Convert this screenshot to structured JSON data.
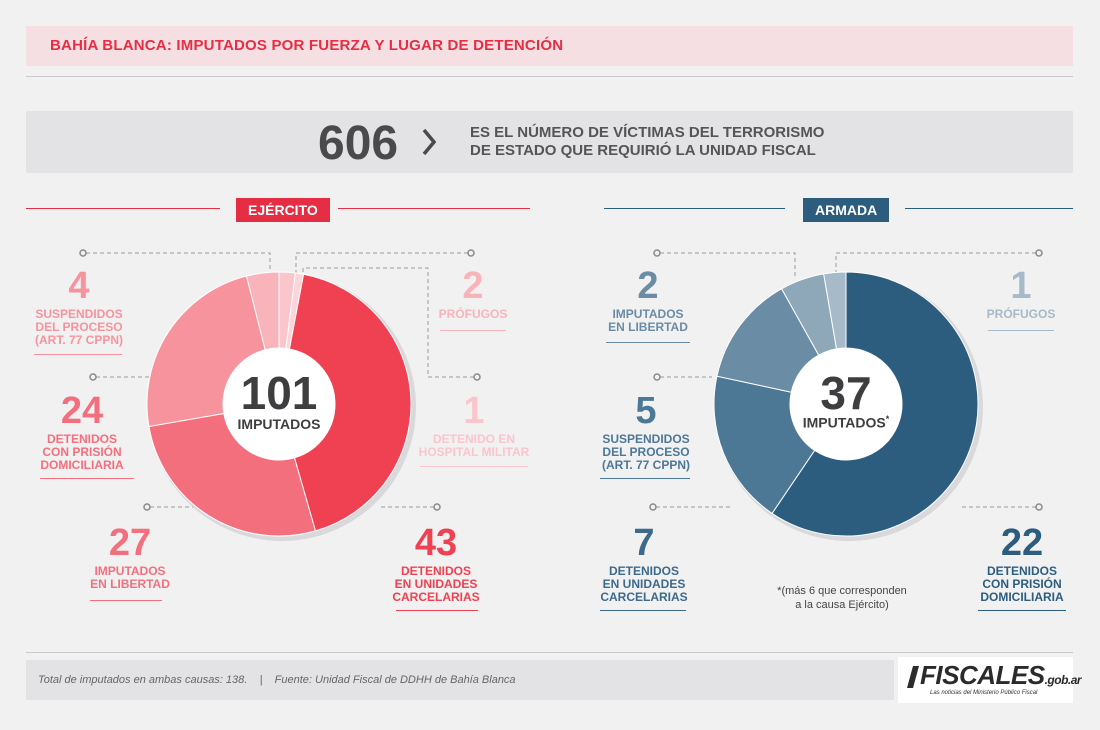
{
  "header": {
    "title": "BAHÍA BLANCA: IMPUTADOS POR FUERZA Y LUGAR DE DETENCIÓN"
  },
  "stat": {
    "number": "606",
    "text_line1": "ES EL NÚMERO DE VÍCTIMAS DEL TERRORISMO",
    "text_line2": "DE ESTADO QUE REQUIRIÓ LA UNIDAD FISCAL"
  },
  "ejercito": {
    "label": "EJÉRCITO",
    "total": "101",
    "total_label": "IMPUTADOS",
    "items": [
      {
        "num": "4",
        "l1": "SUSPENDIDOS",
        "l2": "DEL PROCESO",
        "l3": "(ART. 77 CPPN)"
      },
      {
        "num": "24",
        "l1": "DETENIDOS",
        "l2": "CON PRISIÓN",
        "l3": "DOMICILIARIA"
      },
      {
        "num": "27",
        "l1": "IMPUTADOS",
        "l2": "EN LIBERTAD"
      },
      {
        "num": "2",
        "l1": "PRÓFUGOS"
      },
      {
        "num": "1",
        "l1": "DETENIDO EN",
        "l2": "HOSPITAL MILITAR"
      },
      {
        "num": "43",
        "l1": "DETENIDOS",
        "l2": "EN UNIDADES",
        "l3": "CARCELARIAS"
      }
    ]
  },
  "armada": {
    "label": "ARMADA",
    "total": "37",
    "total_label": "IMPUTADOS",
    "asterisk": "*",
    "items": [
      {
        "num": "2",
        "l1": "IMPUTADOS",
        "l2": "EN LIBERTAD"
      },
      {
        "num": "5",
        "l1": "SUSPENDIDOS",
        "l2": "DEL PROCESO",
        "l3": "(ART. 77 CPPN)"
      },
      {
        "num": "7",
        "l1": "DETENIDOS",
        "l2": "EN UNIDADES",
        "l3": "CARCELARIAS"
      },
      {
        "num": "1",
        "l1": "PRÓFUGOS"
      },
      {
        "num": "22",
        "l1": "DETENIDOS",
        "l2": "CON PRISIÓN",
        "l3": "DOMICILIARIA"
      }
    ],
    "note_line1": "*(más 6 que corresponden",
    "note_line2": "a la causa Ejército)"
  },
  "footer": {
    "text": "Total de imputados en ambas causas: 138.    |    Fuente: Unidad Fiscal de DDHH de Bahía Blanca"
  },
  "logo": {
    "main": "FISCALES",
    "domain": ".gob.ar",
    "tagline": "Las noticias del Ministerio Público Fiscal"
  },
  "chart_data": [
    {
      "type": "pie",
      "title": "EJÉRCITO",
      "categories": [
        "DETENIDOS EN UNIDADES CARCELARIAS",
        "IMPUTADOS EN LIBERTAD",
        "DETENIDOS CON PRISIÓN DOMICILIARIA",
        "SUSPENDIDOS DEL PROCESO (ART. 77 CPPN)",
        "PRÓFUGOS",
        "DETENIDO EN HOSPITAL MILITAR"
      ],
      "values": [
        43,
        27,
        24,
        4,
        2,
        1
      ],
      "colors": [
        "#ef4152",
        "#f46f7d",
        "#f7939d",
        "#f9b3ba",
        "#fac5cb",
        "#fbd5d9"
      ],
      "center": "101 IMPUTADOS"
    },
    {
      "type": "pie",
      "title": "ARMADA",
      "categories": [
        "DETENIDOS CON PRISIÓN DOMICILIARIA",
        "DETENIDOS EN UNIDADES CARCELARIAS",
        "SUSPENDIDOS DEL PROCESO (ART. 77 CPPN)",
        "IMPUTADOS EN LIBERTAD",
        "PRÓFUGOS"
      ],
      "values": [
        22,
        7,
        5,
        2,
        1
      ],
      "colors": [
        "#2c5d7f",
        "#4d7895",
        "#6a8ca4",
        "#8ea8ba",
        "#a6bac9"
      ],
      "center": "37 IMPUTADOS"
    }
  ]
}
